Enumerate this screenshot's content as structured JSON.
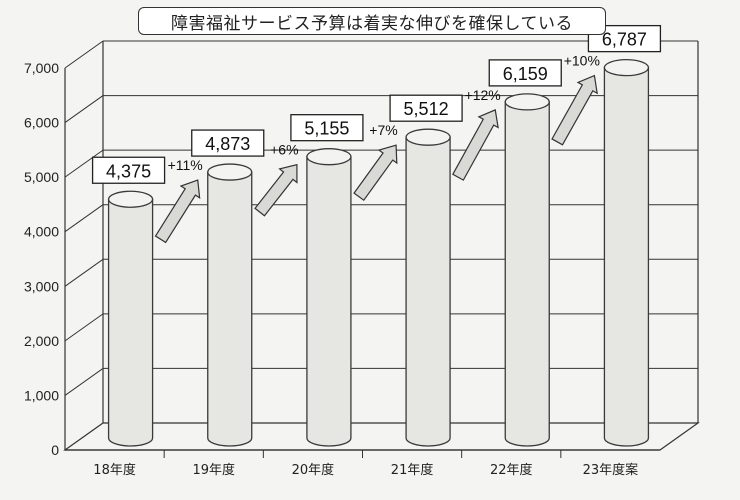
{
  "chart_data": {
    "type": "bar",
    "title": "障害福祉サービス予算は着実な伸びを確保している",
    "categories": [
      "18年度",
      "19年度",
      "20年度",
      "21年度",
      "22年度",
      "23年度案"
    ],
    "values": [
      4375,
      4873,
      5155,
      5512,
      6159,
      6787
    ],
    "value_labels": [
      "4,375",
      "4,873",
      "5,155",
      "5,512",
      "6,159",
      "6,787"
    ],
    "growth_labels": [
      "+11%",
      "+6%",
      "+7%",
      "+12%",
      "+10%"
    ],
    "yticks": [
      "0",
      "1,000",
      "2,000",
      "3,000",
      "4,000",
      "5,000",
      "6,000",
      "7,000"
    ],
    "ylim": [
      0,
      7000
    ],
    "grid": true,
    "style": "3d-cylinder",
    "colors": {
      "bar": "#e6e6e3",
      "bar_edge": "#3a3a3a",
      "grid": "#333333",
      "arrow": "#d9d9d6"
    }
  }
}
